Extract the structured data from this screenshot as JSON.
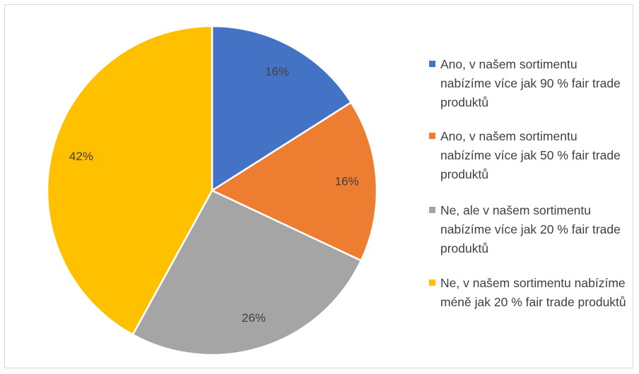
{
  "chart_data": {
    "type": "pie",
    "categories": [
      "Ano, v našem sortimentu nabízíme více jak 90 % fair trade produktů",
      "Ano, v našem sortimentu nabízíme více jak 50 % fair trade produktů",
      "Ne, ale v našem sortimentu nabízíme více jak 20 % fair trade produktů",
      "Ne, v našem sortimentu nabízíme méně jak 20 % fair trade produktů"
    ],
    "values": [
      16,
      16,
      26,
      42
    ],
    "value_labels": [
      "16%",
      "16%",
      "26%",
      "42%"
    ],
    "colors": [
      "#4472c4",
      "#ed7d31",
      "#a5a5a5",
      "#ffc000"
    ],
    "legend": "right"
  }
}
